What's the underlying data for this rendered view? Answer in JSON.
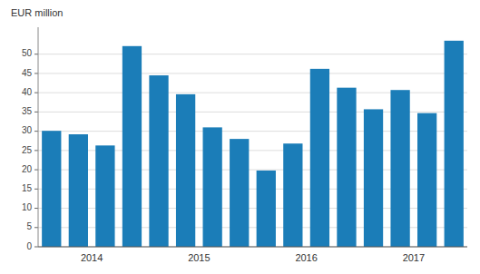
{
  "chart_data": {
    "type": "bar",
    "ylabel": "EUR million",
    "categories": [
      "2014",
      null,
      null,
      null,
      "2015",
      null,
      null,
      null,
      "2016",
      null,
      null,
      null,
      "2017",
      null,
      null,
      null
    ],
    "values": [
      30.1,
      29.2,
      26.3,
      52.1,
      44.5,
      39.6,
      31.0,
      28.0,
      19.8,
      26.8,
      46.2,
      41.3,
      35.7,
      40.7,
      34.7,
      53.5
    ],
    "color": "#1b7db8",
    "ylim": [
      0,
      57
    ],
    "yticks": [
      0,
      5,
      10,
      15,
      20,
      25,
      30,
      35,
      40,
      45,
      50
    ],
    "grid": true
  }
}
